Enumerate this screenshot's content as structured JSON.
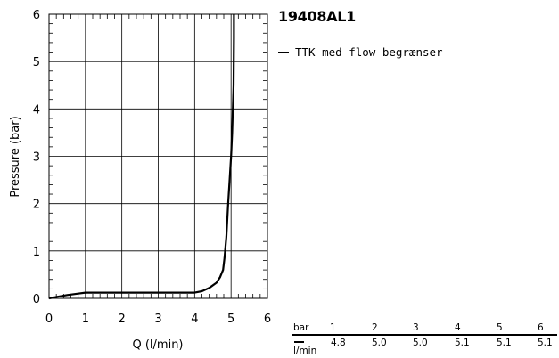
{
  "chart_data": {
    "type": "line",
    "title": "19408AL1",
    "xlabel": "Q (l/min)",
    "ylabel": "Pressure (bar)",
    "xlim": [
      0,
      6
    ],
    "ylim": [
      0,
      6
    ],
    "xticks": [
      "0",
      "1",
      "2",
      "3",
      "4",
      "5",
      "6"
    ],
    "yticks": [
      "0",
      "1",
      "2",
      "3",
      "4",
      "5",
      "6"
    ],
    "grid": true,
    "legend_position": "right",
    "series": [
      {
        "name": "TTK med flow-begrænser",
        "color": "#000000",
        "points": [
          [
            0.0,
            0.0
          ],
          [
            0.2,
            0.03
          ],
          [
            0.5,
            0.07
          ],
          [
            0.8,
            0.1
          ],
          [
            1.0,
            0.12
          ],
          [
            2.0,
            0.12
          ],
          [
            3.0,
            0.12
          ],
          [
            4.0,
            0.12
          ],
          [
            4.2,
            0.15
          ],
          [
            4.4,
            0.22
          ],
          [
            4.6,
            0.33
          ],
          [
            4.7,
            0.45
          ],
          [
            4.78,
            0.6
          ],
          [
            4.82,
            0.85
          ],
          [
            4.87,
            1.3
          ],
          [
            4.92,
            2.0
          ],
          [
            4.97,
            2.6
          ],
          [
            5.0,
            3.0
          ],
          [
            5.03,
            3.5
          ],
          [
            5.05,
            4.0
          ],
          [
            5.07,
            4.5
          ],
          [
            5.08,
            5.5
          ],
          [
            5.08,
            6.0
          ]
        ]
      }
    ]
  },
  "table": {
    "header_label": "bar",
    "unit_label": "l/min",
    "pressures": [
      "1",
      "2",
      "3",
      "4",
      "5",
      "6"
    ],
    "flows": [
      "4.8",
      "5.0",
      "5.0",
      "5.1",
      "5.1",
      "5.1"
    ]
  }
}
